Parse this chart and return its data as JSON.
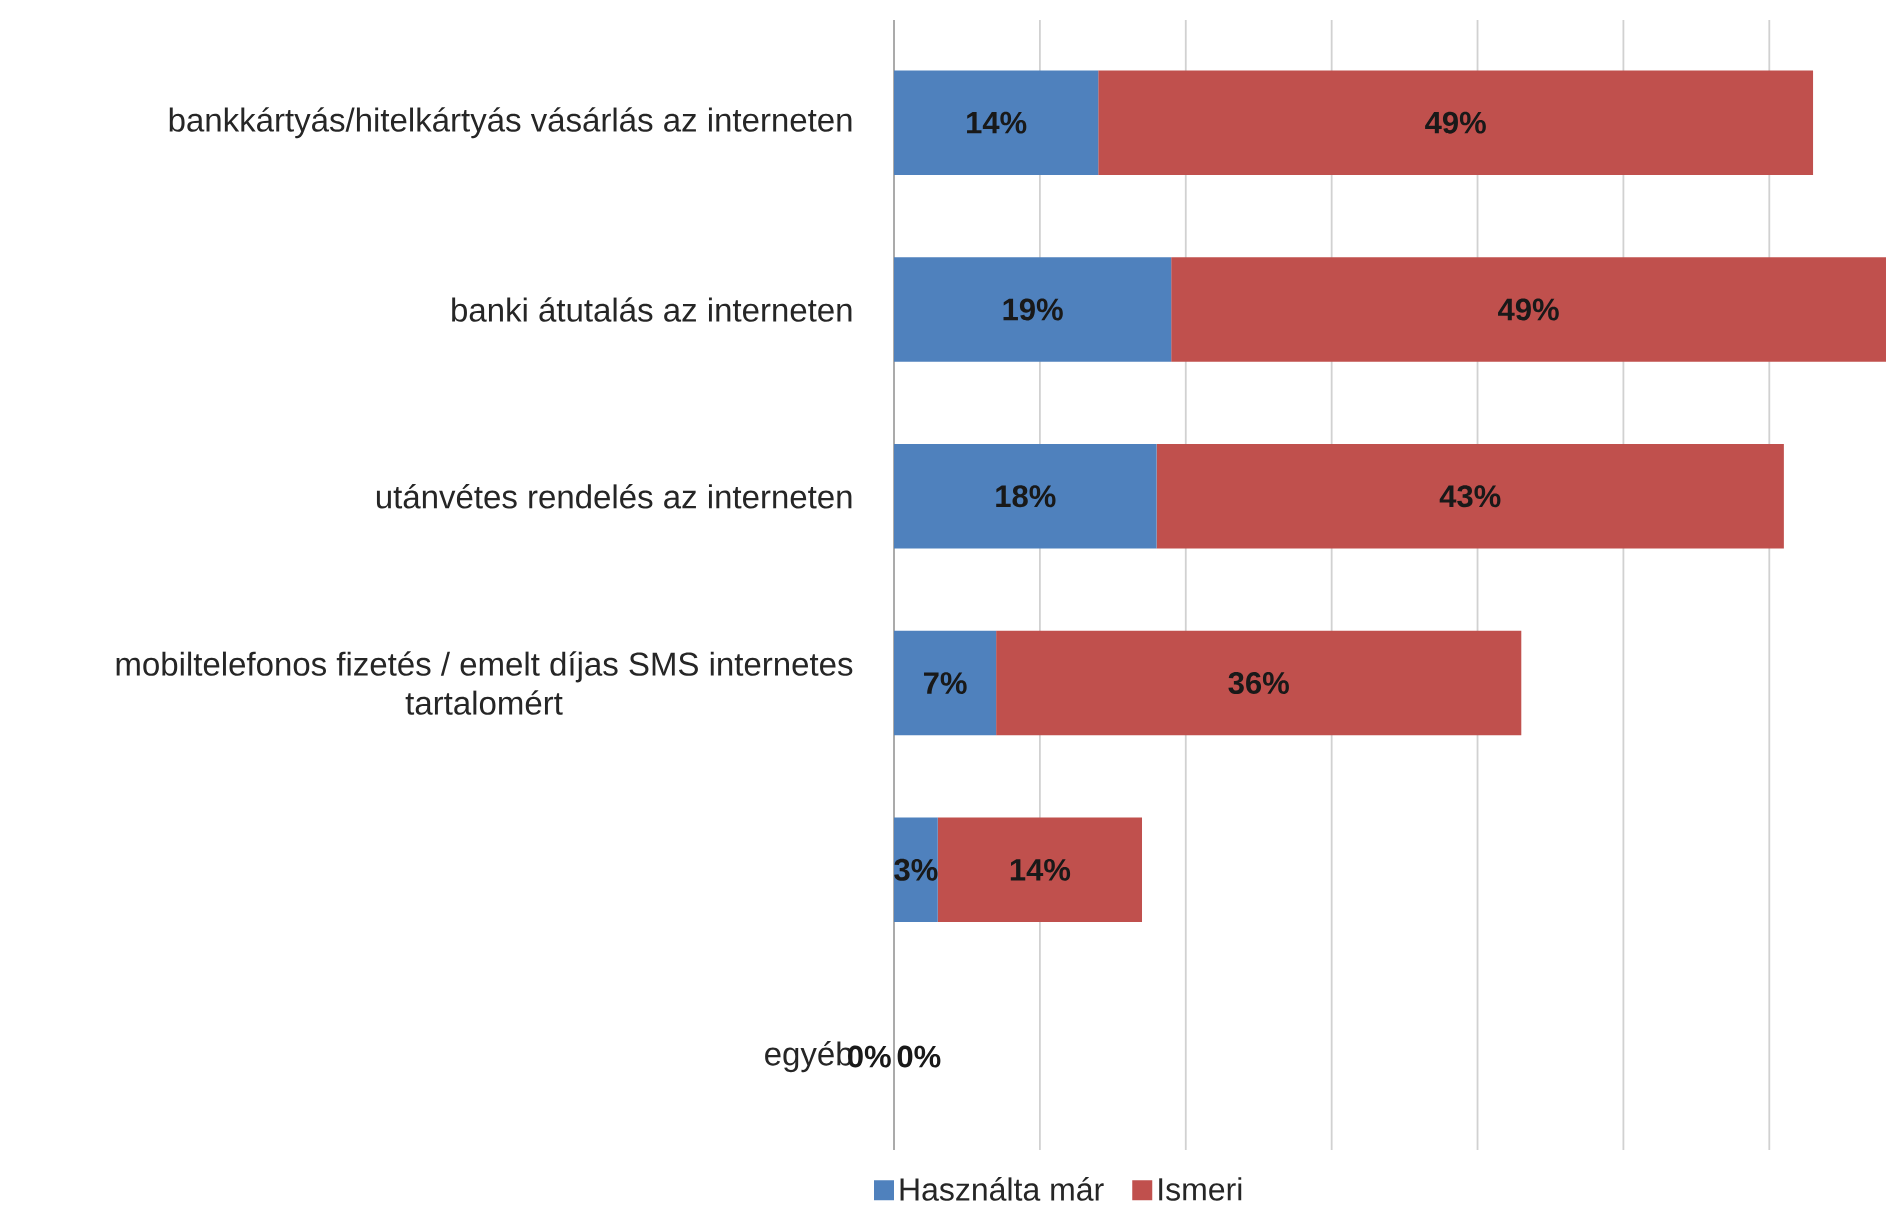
{
  "chart_data": {
    "type": "bar",
    "orientation": "horizontal",
    "stacked": true,
    "categories": [
      "bankkártyás/hitelkártyás vásárlás az interneten",
      "banki átutalás az interneten",
      "utánvétes rendelés az interneten",
      "mobiltelefonos fizetés / emelt díjas SMS internetes tartalomért",
      null,
      "egyéb"
    ],
    "series": [
      {
        "name": "Használta már",
        "color": "#4f81bd",
        "values": [
          14,
          19,
          18,
          7,
          3,
          0
        ],
        "value_labels": [
          "14%",
          "19%",
          "18%",
          "7%",
          "3%",
          "0%"
        ]
      },
      {
        "name": "Ismeri",
        "color": "#c0504d",
        "values": [
          49,
          49,
          43,
          36,
          14,
          0
        ],
        "value_labels": [
          "49%",
          "49%",
          "43%",
          "36%",
          "14%",
          "0%"
        ]
      }
    ],
    "xlim": [
      0,
      68
    ],
    "xticks": [
      {
        "value": 0,
        "label": null
      },
      {
        "value": 10,
        "label": null
      },
      {
        "value": 20,
        "label": null
      },
      {
        "value": 30,
        "label": null
      },
      {
        "value": 40,
        "label": null
      },
      {
        "value": 50,
        "label": null
      },
      {
        "value": 60,
        "label": null
      }
    ],
    "grid": "x",
    "legend": "bottom",
    "tick_labels": "y"
  }
}
